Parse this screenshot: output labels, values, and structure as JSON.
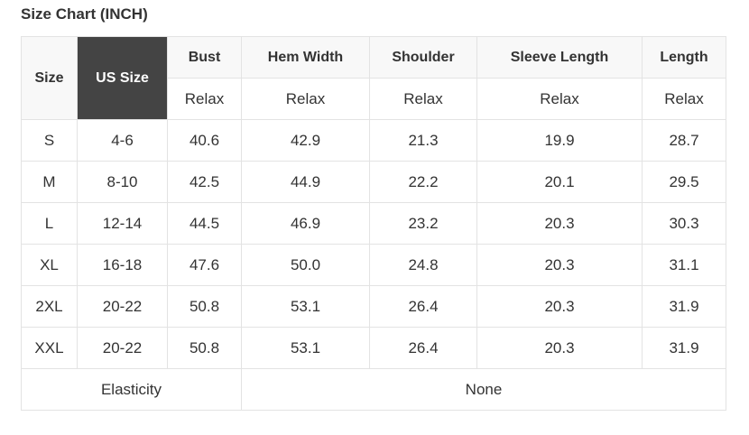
{
  "title": "Size Chart (INCH)",
  "headers": {
    "size": "Size",
    "us_size": "US Size",
    "measures": [
      "Bust",
      "Hem Width",
      "Shoulder",
      "Sleeve Length",
      "Length"
    ],
    "sub": [
      "Relax",
      "Relax",
      "Relax",
      "Relax",
      "Relax"
    ]
  },
  "highlight_color": "#444444",
  "rows": [
    [
      "S",
      "4-6",
      "40.6",
      "42.9",
      "21.3",
      "19.9",
      "28.7"
    ],
    [
      "M",
      "8-10",
      "42.5",
      "44.9",
      "22.2",
      "20.1",
      "29.5"
    ],
    [
      "L",
      "12-14",
      "44.5",
      "46.9",
      "23.2",
      "20.3",
      "30.3"
    ],
    [
      "XL",
      "16-18",
      "47.6",
      "50.0",
      "24.8",
      "20.3",
      "31.1"
    ],
    [
      "2XL",
      "20-22",
      "50.8",
      "53.1",
      "26.4",
      "20.3",
      "31.9"
    ],
    [
      "XXL",
      "20-22",
      "50.8",
      "53.1",
      "26.4",
      "20.3",
      "31.9"
    ]
  ],
  "footer": {
    "label": "Elasticity",
    "value": "None"
  }
}
